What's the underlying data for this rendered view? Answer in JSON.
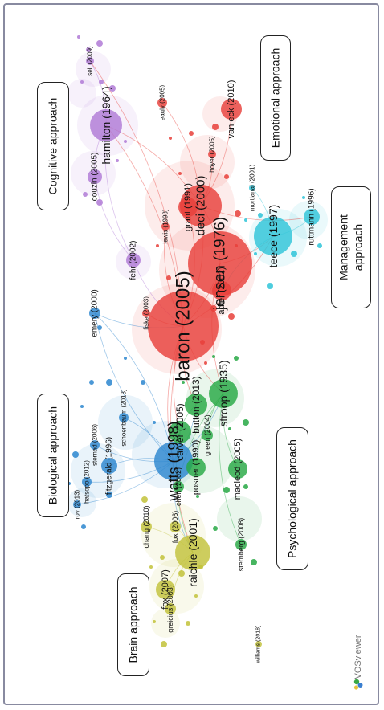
{
  "clusters": [
    {
      "key": "cognitive",
      "label": "Cognitive approach",
      "color": "#b07ad6"
    },
    {
      "key": "emotional",
      "label": "Emotional approach",
      "color": "#e8403a"
    },
    {
      "key": "management",
      "label": "Management approach",
      "color": "#2fc4d8"
    },
    {
      "key": "biological",
      "label": "Biological approach",
      "color": "#2c86cf"
    },
    {
      "key": "psychological",
      "label": "Psychological approach",
      "color": "#27a844"
    },
    {
      "key": "brain",
      "label": "Brain approach",
      "color": "#c2c23a"
    }
  ],
  "boxes": {
    "cognitive": "Cognitive approach",
    "emotional": "Emotional approach",
    "management_line1": "Management",
    "management_line2": "approach",
    "biological": "Biological approach",
    "psychological": "Psychological approach",
    "brain": "Brain approach"
  },
  "software_label": "VOSviewer",
  "nodes": [
    {
      "label": "baron (2005)",
      "cluster": "emotional",
      "size": "major"
    },
    {
      "label": "jensen (1976)",
      "cluster": "emotional",
      "size": "major"
    },
    {
      "label": "deci (2000)",
      "cluster": "emotional",
      "size": "large"
    },
    {
      "label": "grant (1991)",
      "cluster": "emotional",
      "size": "medium"
    },
    {
      "label": "eagly (2005)",
      "cluster": "emotional",
      "size": "small"
    },
    {
      "label": "van eck (2010)",
      "cluster": "emotional",
      "size": "medium"
    },
    {
      "label": "hoyer (2005)",
      "cluster": "emotional",
      "size": "small"
    },
    {
      "label": "adler (2002)",
      "cluster": "emotional",
      "size": "medium"
    },
    {
      "label": "lewis (1998)",
      "cluster": "emotional",
      "size": "small"
    },
    {
      "label": "fiske (2003)",
      "cluster": "emotional",
      "size": "small"
    },
    {
      "label": "teece (1997)",
      "cluster": "management",
      "size": "large"
    },
    {
      "label": "ruttmann (1996)",
      "cluster": "management",
      "size": "medium"
    },
    {
      "label": "mortlanal (2001)",
      "cluster": "management",
      "size": "small"
    },
    {
      "label": "hamilton (1964)",
      "cluster": "cognitive",
      "size": "large"
    },
    {
      "label": "couzin (2005)",
      "cluster": "cognitive",
      "size": "medium"
    },
    {
      "label": "fehr (2002)",
      "cluster": "cognitive",
      "size": "medium"
    },
    {
      "label": "sell (2009)",
      "cluster": "cognitive",
      "size": "small"
    },
    {
      "label": "emery (2000)",
      "cluster": "biological",
      "size": "small"
    },
    {
      "label": "watts (1998)",
      "cluster": "biological",
      "size": "large"
    },
    {
      "label": "schoenbaum (2013)",
      "cluster": "biological",
      "size": "small"
    },
    {
      "label": "sternad (2006)",
      "cluster": "biological",
      "size": "small"
    },
    {
      "label": "fitzgerald (1996)",
      "cluster": "biological",
      "size": "medium"
    },
    {
      "label": "hatsopo (2012)",
      "cluster": "biological",
      "size": "small"
    },
    {
      "label": "roy (2013)",
      "cluster": "biological",
      "size": "small"
    },
    {
      "label": "stroop (1935)",
      "cluster": "psychological",
      "size": "large"
    },
    {
      "label": "button (2013)",
      "cluster": "psychological",
      "size": "medium"
    },
    {
      "label": "carver (2005)",
      "cluster": "psychological",
      "size": "medium"
    },
    {
      "label": "posner (1990)",
      "cluster": "psychological",
      "size": "medium"
    },
    {
      "label": "macleod (2005)",
      "cluster": "psychological",
      "size": "medium"
    },
    {
      "label": "chen (2002)",
      "cluster": "psychological",
      "size": "small"
    },
    {
      "label": "green (2004)",
      "cluster": "psychological",
      "size": "small"
    },
    {
      "label": "sternberg (2008)",
      "cluster": "psychological",
      "size": "small"
    },
    {
      "label": "raichle (2001)",
      "cluster": "brain",
      "size": "large"
    },
    {
      "label": "fox (2007)",
      "cluster": "brain",
      "size": "medium"
    },
    {
      "label": "fox (2006)",
      "cluster": "brain",
      "size": "small"
    },
    {
      "label": "chang (2010)",
      "cluster": "brain",
      "size": "small"
    },
    {
      "label": "greicius (2003)",
      "cluster": "brain",
      "size": "small"
    },
    {
      "label": "williams (2018)",
      "cluster": "brain",
      "size": "small"
    }
  ]
}
